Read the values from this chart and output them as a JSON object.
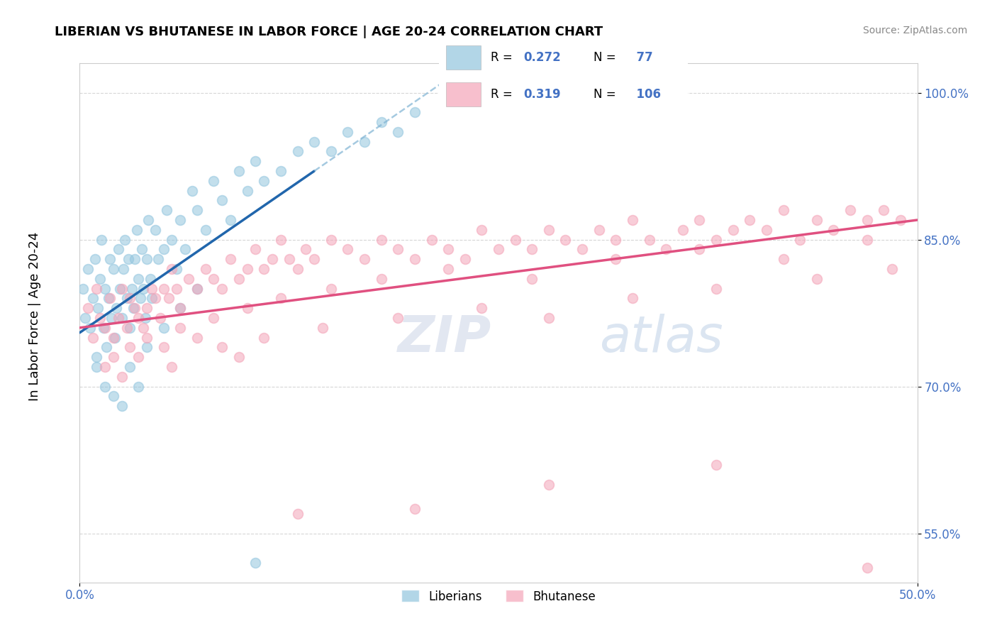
{
  "title": "LIBERIAN VS BHUTANESE IN LABOR FORCE | AGE 20-24 CORRELATION CHART",
  "source_text": "Source: ZipAtlas.com",
  "ylabel": "In Labor Force | Age 20-24",
  "xlim": [
    0.0,
    50.0
  ],
  "ylim": [
    50.0,
    103.0
  ],
  "xticklabels_right": [
    "0.0%",
    "50.0%"
  ],
  "xticklabels_bottom": [
    "0.0%",
    "50.0%"
  ],
  "ytick_positions": [
    55.0,
    70.0,
    85.0,
    100.0
  ],
  "ytick_labels": [
    "55.0%",
    "70.0%",
    "85.0%",
    "100.0%"
  ],
  "xtick_positions": [
    0.0,
    50.0
  ],
  "liberian_color": "#92c5de",
  "bhutanese_color": "#f4a4b8",
  "liberian_line_color": "#2166ac",
  "bhutanese_line_color": "#d6604d",
  "liberian_line_color2": "#e31a1c",
  "bhutanese_line_color2": "#e7298a",
  "marker_size": 100,
  "marker_alpha": 0.55,
  "liberian_R": 0.272,
  "liberian_N": 77,
  "bhutanese_R": 0.319,
  "bhutanese_N": 106,
  "watermark_zip": "ZIP",
  "watermark_atlas": "atlas",
  "background_color": "#ffffff",
  "grid_color": "#cccccc",
  "liberian_scatter_x": [
    0.2,
    0.3,
    0.5,
    0.6,
    0.8,
    0.9,
    1.0,
    1.1,
    1.2,
    1.3,
    1.4,
    1.5,
    1.6,
    1.7,
    1.8,
    1.9,
    2.0,
    2.1,
    2.2,
    2.3,
    2.4,
    2.5,
    2.6,
    2.7,
    2.8,
    2.9,
    3.0,
    3.1,
    3.2,
    3.3,
    3.4,
    3.5,
    3.6,
    3.7,
    3.8,
    3.9,
    4.0,
    4.1,
    4.2,
    4.3,
    4.5,
    4.7,
    5.0,
    5.2,
    5.5,
    5.8,
    6.0,
    6.3,
    6.7,
    7.0,
    7.5,
    8.0,
    8.5,
    9.0,
    9.5,
    10.0,
    10.5,
    11.0,
    12.0,
    13.0,
    14.0,
    15.0,
    16.0,
    17.0,
    18.0,
    19.0,
    20.0,
    1.0,
    1.5,
    2.0,
    2.5,
    3.0,
    3.5,
    4.0,
    5.0,
    6.0,
    7.0
  ],
  "liberian_scatter_y": [
    80.0,
    77.0,
    82.0,
    76.0,
    79.0,
    83.0,
    73.0,
    78.0,
    81.0,
    85.0,
    76.0,
    80.0,
    74.0,
    79.0,
    83.0,
    77.0,
    82.0,
    75.0,
    78.0,
    84.0,
    80.0,
    77.0,
    82.0,
    85.0,
    79.0,
    83.0,
    76.0,
    80.0,
    78.0,
    83.0,
    86.0,
    81.0,
    79.0,
    84.0,
    80.0,
    77.0,
    83.0,
    87.0,
    81.0,
    79.0,
    86.0,
    83.0,
    84.0,
    88.0,
    85.0,
    82.0,
    87.0,
    84.0,
    90.0,
    88.0,
    86.0,
    91.0,
    89.0,
    87.0,
    92.0,
    90.0,
    93.0,
    91.0,
    92.0,
    94.0,
    95.0,
    94.0,
    96.0,
    95.0,
    97.0,
    96.0,
    98.0,
    72.0,
    70.0,
    69.0,
    68.0,
    72.0,
    70.0,
    74.0,
    76.0,
    78.0,
    80.0
  ],
  "bhutanese_scatter_x": [
    0.5,
    0.8,
    1.0,
    1.2,
    1.5,
    1.8,
    2.0,
    2.3,
    2.5,
    2.8,
    3.0,
    3.3,
    3.5,
    3.8,
    4.0,
    4.3,
    4.5,
    4.8,
    5.0,
    5.3,
    5.5,
    5.8,
    6.0,
    6.5,
    7.0,
    7.5,
    8.0,
    8.5,
    9.0,
    9.5,
    10.0,
    10.5,
    11.0,
    11.5,
    12.0,
    12.5,
    13.0,
    13.5,
    14.0,
    15.0,
    16.0,
    17.0,
    18.0,
    19.0,
    20.0,
    21.0,
    22.0,
    23.0,
    24.0,
    25.0,
    26.0,
    27.0,
    28.0,
    29.0,
    30.0,
    31.0,
    32.0,
    33.0,
    34.0,
    35.0,
    36.0,
    37.0,
    38.0,
    39.0,
    40.0,
    41.0,
    42.0,
    43.0,
    44.0,
    45.0,
    46.0,
    47.0,
    48.0,
    49.0,
    2.0,
    3.0,
    4.0,
    5.0,
    6.0,
    7.0,
    8.0,
    10.0,
    12.0,
    15.0,
    18.0,
    22.0,
    27.0,
    32.0,
    37.0,
    42.0,
    47.0,
    1.5,
    2.5,
    3.5,
    5.5,
    8.5,
    11.0,
    14.5,
    19.0,
    24.0,
    28.0,
    33.0,
    38.0,
    44.0,
    48.5,
    9.5
  ],
  "bhutanese_scatter_y": [
    78.0,
    75.0,
    80.0,
    77.0,
    76.0,
    79.0,
    75.0,
    77.0,
    80.0,
    76.0,
    79.0,
    78.0,
    77.0,
    76.0,
    78.0,
    80.0,
    79.0,
    77.0,
    80.0,
    79.0,
    82.0,
    80.0,
    78.0,
    81.0,
    80.0,
    82.0,
    81.0,
    80.0,
    83.0,
    81.0,
    82.0,
    84.0,
    82.0,
    83.0,
    85.0,
    83.0,
    82.0,
    84.0,
    83.0,
    85.0,
    84.0,
    83.0,
    85.0,
    84.0,
    83.0,
    85.0,
    84.0,
    83.0,
    86.0,
    84.0,
    85.0,
    84.0,
    86.0,
    85.0,
    84.0,
    86.0,
    85.0,
    87.0,
    85.0,
    84.0,
    86.0,
    87.0,
    85.0,
    86.0,
    87.0,
    86.0,
    88.0,
    85.0,
    87.0,
    86.0,
    88.0,
    87.0,
    88.0,
    87.0,
    73.0,
    74.0,
    75.0,
    74.0,
    76.0,
    75.0,
    77.0,
    78.0,
    79.0,
    80.0,
    81.0,
    82.0,
    81.0,
    83.0,
    84.0,
    83.0,
    85.0,
    72.0,
    71.0,
    73.0,
    72.0,
    74.0,
    75.0,
    76.0,
    77.0,
    78.0,
    77.0,
    79.0,
    80.0,
    81.0,
    82.0,
    73.0
  ],
  "bhutanese_outliers_x": [
    13.0,
    20.0,
    28.0,
    38.0,
    47.0
  ],
  "bhutanese_outliers_y": [
    57.0,
    57.5,
    60.0,
    62.0,
    51.5
  ],
  "liberian_outlier_x": [
    10.5
  ],
  "liberian_outlier_y": [
    52.0
  ]
}
